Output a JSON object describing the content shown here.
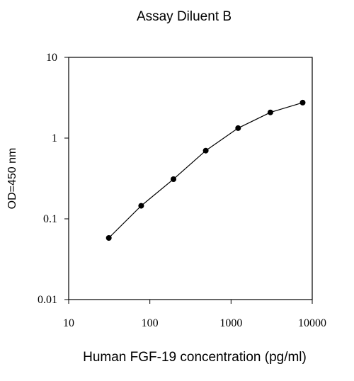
{
  "chart_data": {
    "type": "scatter",
    "title": "Assay Diluent B",
    "xlabel": "Human FGF-19 concentration (pg/ml)",
    "ylabel": "OD=450 nm",
    "xscale": "log",
    "yscale": "log",
    "xlim": [
      10,
      10000
    ],
    "ylim": [
      0.01,
      10
    ],
    "x_ticks": [
      "10",
      "100",
      "1000",
      "10000"
    ],
    "y_ticks": [
      "10",
      "1",
      "0.1",
      "0.01"
    ],
    "grid": false,
    "series": [
      {
        "x": [
          31.25,
          78.125,
          195.3125,
          488.28,
          1220.7,
          3051.8,
          7629.4
        ],
        "y": [
          0.058,
          0.145,
          0.31,
          0.7,
          1.33,
          2.08,
          2.75
        ],
        "marker": "filled-circle",
        "line": true,
        "color": "#000000"
      }
    ]
  }
}
